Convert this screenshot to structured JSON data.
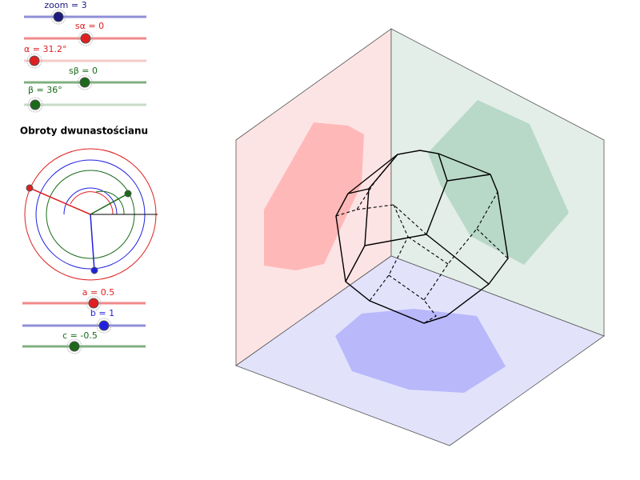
{
  "sliders_top": [
    {
      "label": "zoom = 3"
    },
    {
      "label": "sα = 0"
    },
    {
      "label": "α = 31.2°"
    },
    {
      "label": "sβ = 0"
    },
    {
      "label": "β = 36°"
    }
  ],
  "title": "Obroty dwunastościanu",
  "sliders_bottom": [
    {
      "label": "a = 0.5"
    },
    {
      "label": "b = 1"
    },
    {
      "label": "c = -0.5"
    }
  ]
}
